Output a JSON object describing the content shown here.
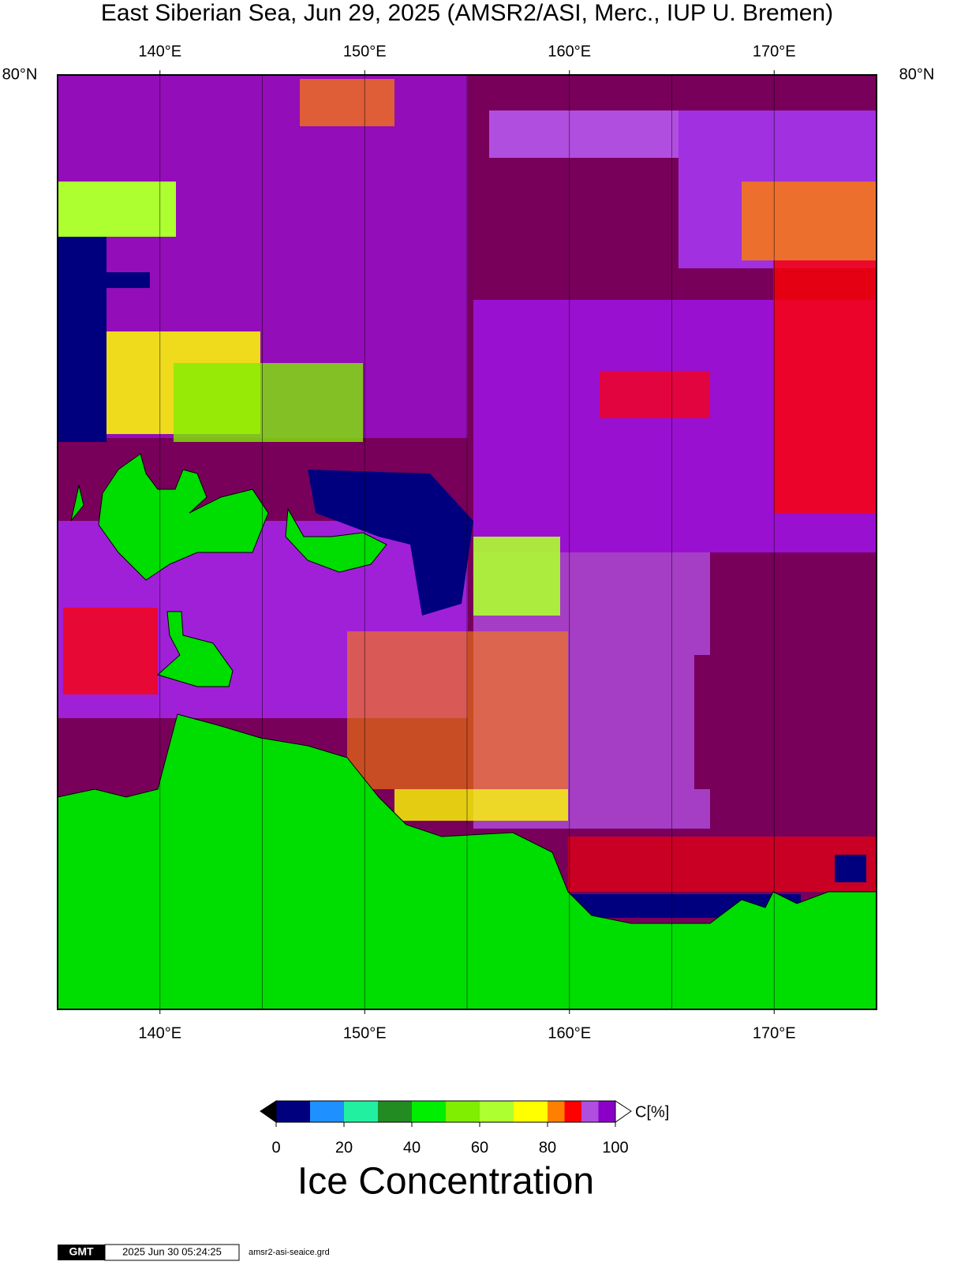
{
  "title": "East Siberian Sea, Jun 29, 2025 (AMSR2/ASI, Merc., IUP U. Bremen)",
  "map": {
    "xlim": [
      135,
      175
    ],
    "meridians": [
      140,
      145,
      150,
      155,
      160,
      165,
      170
    ],
    "lon_ticks": [
      {
        "value": 140,
        "label": "140°E"
      },
      {
        "value": 150,
        "label": "150°E"
      },
      {
        "value": 160,
        "label": "160°E"
      },
      {
        "value": 170,
        "label": "170°E"
      }
    ],
    "lat_label": "80°N"
  },
  "colorbar": {
    "bins": [
      0,
      10,
      20,
      30,
      40,
      50,
      60,
      70,
      80,
      85,
      90,
      95,
      100
    ],
    "colors": [
      "#00007f",
      "#1e90ff",
      "#20f0a0",
      "#228b22",
      "#00ee00",
      "#7fee00",
      "#adff2f",
      "#ffff00",
      "#ff8000",
      "#ff0000",
      "#b04ee0",
      "#8b00c8"
    ],
    "ticks": [
      0,
      20,
      40,
      60,
      80,
      100
    ],
    "unit": "C[%]",
    "label": "Ice Concentration"
  },
  "footer": {
    "logo": "GMT",
    "timestamp": "2025 Jun 30 05:24:25",
    "file": "amsr2-asi-seaice.grd"
  }
}
